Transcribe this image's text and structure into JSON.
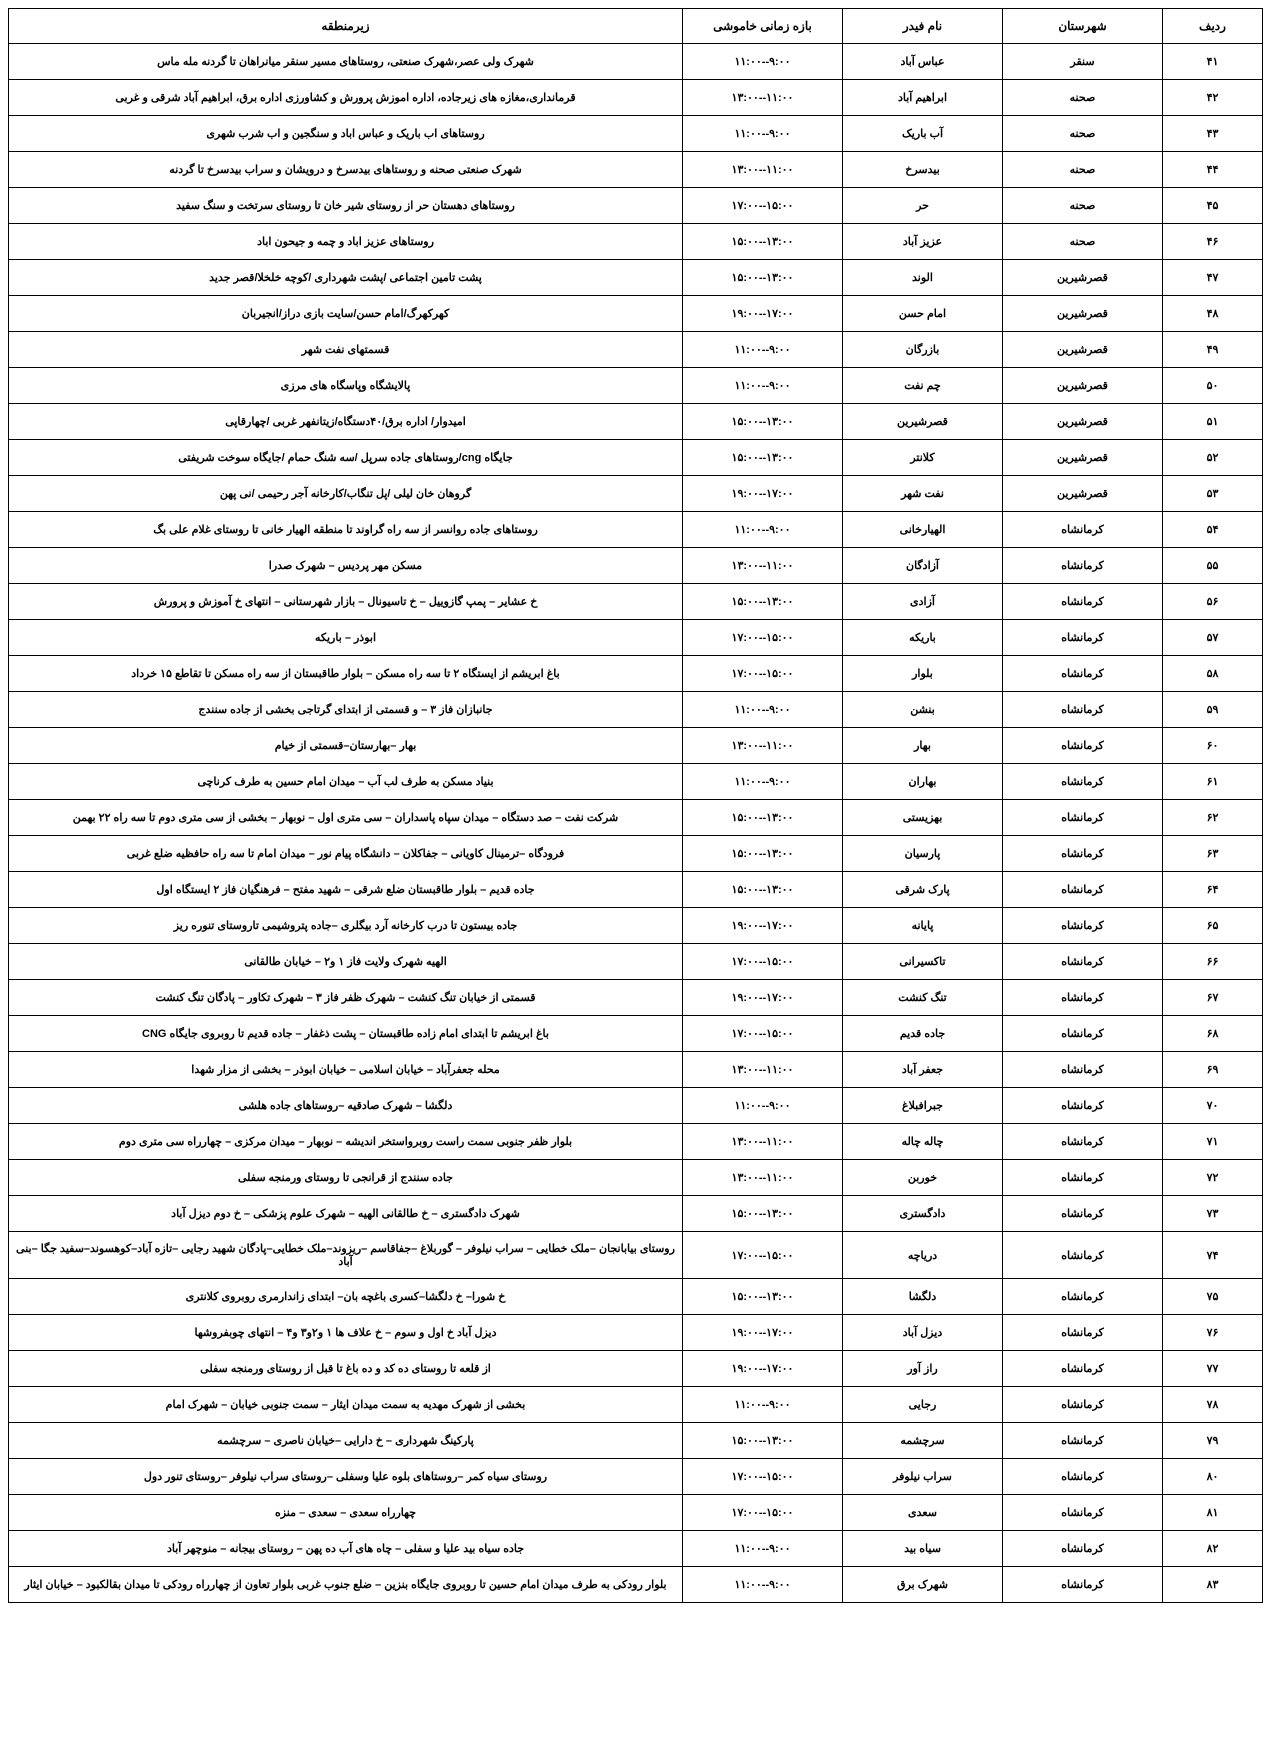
{
  "headers": {
    "row": "ردیف",
    "city": "شهرستان",
    "feeder": "نام فیدر",
    "time": "بازه زمانی خاموشی",
    "area": "زیرمنطقه"
  },
  "rows": [
    {
      "n": "۴۱",
      "city": "سنقر",
      "feeder": "عباس آباد",
      "time": "۹:۰۰--۱۱:۰۰",
      "area": "شهرک ولی عصر،شهرک صنعتی، روستاهای مسیر سنقر میانراهان تا گردنه مله ماس"
    },
    {
      "n": "۴۲",
      "city": "صحنه",
      "feeder": "ابراهیم آباد",
      "time": "۱۱:۰۰--۱۳:۰۰",
      "area": "قرمانداری،مغازه های زیرجاده، اداره اموزش پرورش و کشاورزی اداره برق، ابراهیم آباد شرقی و غربی"
    },
    {
      "n": "۴۳",
      "city": "صحنه",
      "feeder": "آب باریک",
      "time": "۹:۰۰--۱۱:۰۰",
      "area": "روستاهای اب باریک و عباس اباد و سنگجین و اب شرب شهری"
    },
    {
      "n": "۴۴",
      "city": "صحنه",
      "feeder": "بیدسرخ",
      "time": "۱۱:۰۰--۱۳:۰۰",
      "area": "شهرک صنعتی صحنه و روستاهای بیدسرخ و درویشان و سراب بیدسرخ تا گردنه"
    },
    {
      "n": "۴۵",
      "city": "صحنه",
      "feeder": "حر",
      "time": "۱۵:۰۰--۱۷:۰۰",
      "area": "روستاهای دهستان حر از روستای شیر خان تا روستای سرتخت و سنگ سفید"
    },
    {
      "n": "۴۶",
      "city": "صحنه",
      "feeder": "عزیز آباد",
      "time": "۱۳:۰۰--۱۵:۰۰",
      "area": "روستاهای عزیز اباد و چمه و جیحون اباد"
    },
    {
      "n": "۴۷",
      "city": "قصرشیرین",
      "feeder": "الوند",
      "time": "۱۳:۰۰--۱۵:۰۰",
      "area": "پشت تامین اجتماعی /پشت شهرداری /کوچه خلخلا/قصر جدید"
    },
    {
      "n": "۴۸",
      "city": "قصرشیرین",
      "feeder": "امام حسن",
      "time": "۱۷:۰۰--۱۹:۰۰",
      "area": "کهرکهرگ/امام حسن/سایت بازی دراز/انجیربان"
    },
    {
      "n": "۴۹",
      "city": "قصرشیرین",
      "feeder": "بازرگان",
      "time": "۹:۰۰--۱۱:۰۰",
      "area": "قسمتهای نفت شهر"
    },
    {
      "n": "۵۰",
      "city": "قصرشیرین",
      "feeder": "چم نفت",
      "time": "۹:۰۰--۱۱:۰۰",
      "area": "پالایشگاه وپاسگاه های مرزی"
    },
    {
      "n": "۵۱",
      "city": "قصرشیرین",
      "feeder": "قصرشیرین",
      "time": "۱۳:۰۰--۱۵:۰۰",
      "area": "امیدوار/ اداره برق/۴۰دستگاه/زیتانفهر غربی /چهارقاپی"
    },
    {
      "n": "۵۲",
      "city": "قصرشیرین",
      "feeder": "کلانتر",
      "time": "۱۳:۰۰--۱۵:۰۰",
      "area": "جایگاه cng/روستاهای جاده سرپل /سه شنگ حمام /جایگاه سوخت شریفتی"
    },
    {
      "n": "۵۳",
      "city": "قصرشیرین",
      "feeder": "نفت شهر",
      "time": "۱۷:۰۰--۱۹:۰۰",
      "area": "گروهان خان لیلی /پل تنگاب/کارخانه آجر رحیمی /نی پهن"
    },
    {
      "n": "۵۴",
      "city": "کرمانشاه",
      "feeder": "الهیارخانی",
      "time": "۹:۰۰--۱۱:۰۰",
      "area": "روستاهای جاده روانسر از سه راه گراوند تا منطقه الهیار خانی تا روستای غلام علی بگ"
    },
    {
      "n": "۵۵",
      "city": "کرمانشاه",
      "feeder": "آزادگان",
      "time": "۱۱:۰۰--۱۳:۰۰",
      "area": "مسکن مهر پردیس – شهرک صدرا"
    },
    {
      "n": "۵۶",
      "city": "کرمانشاه",
      "feeder": "آزادی",
      "time": "۱۳:۰۰--۱۵:۰۰",
      "area": "خ عشایر – پمپ گازوییل – خ تاسیونال – بازار شهرستانی – انتهای خ آموزش و پرورش"
    },
    {
      "n": "۵۷",
      "city": "کرمانشاه",
      "feeder": "باریکه",
      "time": "۱۵:۰۰--۱۷:۰۰",
      "area": "ابوذر – باریکه"
    },
    {
      "n": "۵۸",
      "city": "کرمانشاه",
      "feeder": "بلوار",
      "time": "۱۵:۰۰--۱۷:۰۰",
      "area": "باغ ابریشم از ایستگاه ۲ تا سه راه مسکن – بلوار طاقبستان از سه راه مسکن تا تقاطع ۱۵ خرداد"
    },
    {
      "n": "۵۹",
      "city": "کرمانشاه",
      "feeder": "بنشن",
      "time": "۹:۰۰--۱۱:۰۰",
      "area": "جانبازان فاز ۳ – و قسمتی از ابتدای گرتاجی بخشی از جاده سنندج"
    },
    {
      "n": "۶۰",
      "city": "کرمانشاه",
      "feeder": "بهار",
      "time": "۱۱:۰۰--۱۳:۰۰",
      "area": "بهار –بهارستان–قسمتی از خیام"
    },
    {
      "n": "۶۱",
      "city": "کرمانشاه",
      "feeder": "بهاران",
      "time": "۹:۰۰--۱۱:۰۰",
      "area": "بنیاد مسکن به طرف لب آب – میدان امام حسین به طرف کرناچی"
    },
    {
      "n": "۶۲",
      "city": "کرمانشاه",
      "feeder": "بهزیستی",
      "time": "۱۳:۰۰--۱۵:۰۰",
      "area": "شرکت نفت – صد دستگاه – میدان سپاه پاسداران – سی متری اول – نوبهار – بخشی از سی متری دوم تا سه راه ۲۲ بهمن"
    },
    {
      "n": "۶۳",
      "city": "کرمانشاه",
      "feeder": "پارسیان",
      "time": "۱۳:۰۰--۱۵:۰۰",
      "area": "فرودگاه –ترمینال کاویانی – جفاکلان – دانشگاه پیام نور – میدان امام تا سه راه حافظیه ضلع غربی"
    },
    {
      "n": "۶۴",
      "city": "کرمانشاه",
      "feeder": "پارک شرقی",
      "time": "۱۳:۰۰--۱۵:۰۰",
      "area": "جاده قدیم – بلوار طاقبستان ضلع شرقی – شهید مفتح – فرهنگیان فاز ۲ ایستگاه اول"
    },
    {
      "n": "۶۵",
      "city": "کرمانشاه",
      "feeder": "پایانه",
      "time": "۱۷:۰۰--۱۹:۰۰",
      "area": "جاده بیستون تا درب کارخانه آرد بیگلری –جاده پتروشیمی تاروستای تنوره ریز"
    },
    {
      "n": "۶۶",
      "city": "کرمانشاه",
      "feeder": "تاکسیرانی",
      "time": "۱۵:۰۰--۱۷:۰۰",
      "area": "الهیه شهرک ولایت فاز ۱ و۲ – خیابان طالقانی"
    },
    {
      "n": "۶۷",
      "city": "کرمانشاه",
      "feeder": "تنگ کنشت",
      "time": "۱۷:۰۰--۱۹:۰۰",
      "area": "قسمتی از خیابان تنگ کنشت – شهرک ظفر فاز ۳ – شهرک تکاور – پادگان تنگ کنشت"
    },
    {
      "n": "۶۸",
      "city": "کرمانشاه",
      "feeder": "جاده قدیم",
      "time": "۱۵:۰۰--۱۷:۰۰",
      "area": "باغ ابریشم تا ابتدای امام زاده طاقبستان – پشت ذغفار – جاده قدیم تا روبروی جایگاه CNG"
    },
    {
      "n": "۶۹",
      "city": "کرمانشاه",
      "feeder": "جعفر آباد",
      "time": "۱۱:۰۰--۱۳:۰۰",
      "area": "محله جعفرآباد – خیابان اسلامی – خیابان ابوذر – بخشی از مزار شهدا"
    },
    {
      "n": "۷۰",
      "city": "کرمانشاه",
      "feeder": "جبرافبلاغ",
      "time": "۹:۰۰--۱۱:۰۰",
      "area": "دلگشا – شهرک صادقیه –روستاهای جاده هلشی"
    },
    {
      "n": "۷۱",
      "city": "کرمانشاه",
      "feeder": "چاله چاله",
      "time": "۱۱:۰۰--۱۳:۰۰",
      "area": "بلوار ظفر جنوبی سمت راست روبرواستخر اندیشه – نوبهار – میدان مرکزی – چهارراه سی متری دوم"
    },
    {
      "n": "۷۲",
      "city": "کرمانشاه",
      "feeder": "خوربن",
      "time": "۱۱:۰۰--۱۳:۰۰",
      "area": "جاده سنندج از قرانجی تا روستای ورمنجه سفلی"
    },
    {
      "n": "۷۳",
      "city": "کرمانشاه",
      "feeder": "دادگستری",
      "time": "۱۳:۰۰--۱۵:۰۰",
      "area": "شهرک دادگستری – خ طالقانی الهیه – شهرک علوم پزشکی – خ دوم دیزل آباد"
    },
    {
      "n": "۷۴",
      "city": "کرمانشاه",
      "feeder": "دریاچه",
      "time": "۱۵:۰۰--۱۷:۰۰",
      "area": "روستای بیابانجان –ملک خطایی – سراب نیلوفر – گوربلاغ –جفاقاسم –ریزوند–ملک خطایی–پادگان شهید رجایی –تازه آباد–کوهسوند–سفید جگا –بنی آباد"
    },
    {
      "n": "۷۵",
      "city": "کرمانشاه",
      "feeder": "دلگشا",
      "time": "۱۳:۰۰--۱۵:۰۰",
      "area": "خ شورا– خ دلگشا–کسری باغچه بان– ابتدای زاندارمری روبروی کلانتری"
    },
    {
      "n": "۷۶",
      "city": "کرمانشاه",
      "feeder": "دیزل آباد",
      "time": "۱۷:۰۰--۱۹:۰۰",
      "area": "دیزل آباد خ اول و سوم – خ علاف ها ۱ و۲و۳ و۴ – انتهای چوبفروشها"
    },
    {
      "n": "۷۷",
      "city": "کرمانشاه",
      "feeder": "راز آور",
      "time": "۱۷:۰۰--۱۹:۰۰",
      "area": "از قلعه تا روستای ده کد و ده باغ تا قبل از روستای ورمنجه سفلی"
    },
    {
      "n": "۷۸",
      "city": "کرمانشاه",
      "feeder": "رجایی",
      "time": "۹:۰۰--۱۱:۰۰",
      "area": "بخشی از شهرک مهدیه به سمت میدان ایثار – سمت جنوبی خیابان – شهرک امام"
    },
    {
      "n": "۷۹",
      "city": "کرمانشاه",
      "feeder": "سرچشمه",
      "time": "۱۳:۰۰--۱۵:۰۰",
      "area": "پارکینگ شهرداری – خ دارایی –خیابان ناصری – سرچشمه"
    },
    {
      "n": "۸۰",
      "city": "کرمانشاه",
      "feeder": "سراب نیلوفر",
      "time": "۱۵:۰۰--۱۷:۰۰",
      "area": "روستای سیاه کمر –روستاهای بلوه علیا وسفلی –روستای سراب نیلوفر –روستای تنور دول"
    },
    {
      "n": "۸۱",
      "city": "کرمانشاه",
      "feeder": "سعدی",
      "time": "۱۵:۰۰--۱۷:۰۰",
      "area": "چهارراه سعدی – سعدی – منزه"
    },
    {
      "n": "۸۲",
      "city": "کرمانشاه",
      "feeder": "سیاه بید",
      "time": "۹:۰۰--۱۱:۰۰",
      "area": "جاده سیاه بید علیا و سفلی – چاه های آب ده پهن – روستای بیجانه – منوچهر آباد"
    },
    {
      "n": "۸۳",
      "city": "کرمانشاه",
      "feeder": "شهرک برق",
      "time": "۹:۰۰--۱۱:۰۰",
      "area": "بلوار رودکی به طرف میدان امام حسین تا روبروی جایگاه بنزین – ضلع جنوب غربی بلوار تعاون از چهارراه رودکی تا میدان بقالکبود – خیابان ایثار"
    }
  ]
}
